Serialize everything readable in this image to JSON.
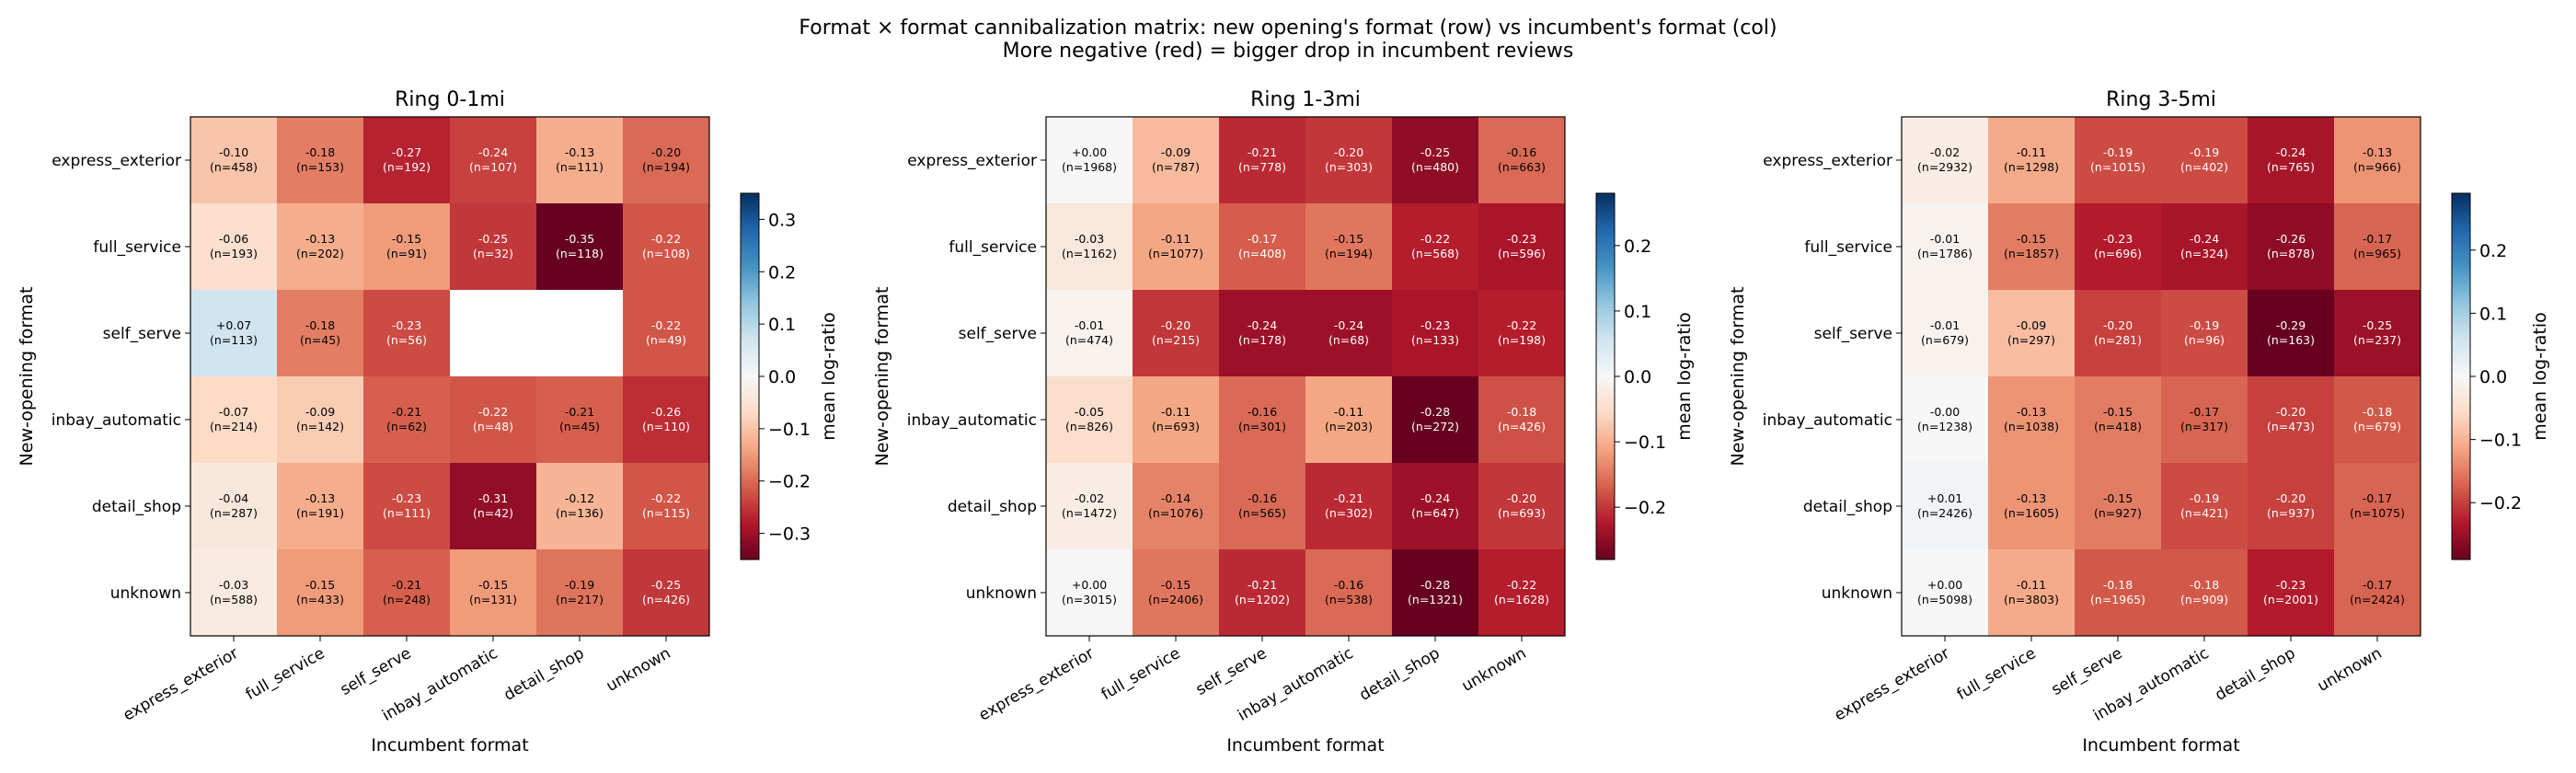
{
  "figure": {
    "title_line1": "Format × format cannibalization matrix: new opening's format (row) vs incumbent's format (col)",
    "title_line2": "More negative (red) = bigger drop in incumbent reviews"
  },
  "colors": {
    "colormap": "RdBu",
    "stops": [
      "#67001f",
      "#b2182b",
      "#d6604d",
      "#f4a582",
      "#fddbc7",
      "#f7f7f7",
      "#d1e5f0",
      "#92c5de",
      "#4393c3",
      "#2166ac",
      "#053061"
    ],
    "missing_cell": "#ffffff"
  },
  "chart_data": [
    {
      "type": "heatmap",
      "title": "Ring 0-1mi",
      "xlabel": "Incumbent format",
      "ylabel": "New-opening format",
      "colorbar_label": "mean log-ratio",
      "columns": [
        "express_exterior",
        "full_service",
        "self_serve",
        "inbay_automatic",
        "detail_shop",
        "unknown"
      ],
      "rows": [
        "express_exterior",
        "full_service",
        "self_serve",
        "inbay_automatic",
        "detail_shop",
        "unknown"
      ],
      "values": [
        [
          -0.1,
          -0.18,
          -0.27,
          -0.24,
          -0.13,
          -0.2
        ],
        [
          -0.06,
          -0.13,
          -0.15,
          -0.25,
          -0.35,
          -0.22
        ],
        [
          0.07,
          -0.18,
          -0.23,
          null,
          null,
          -0.22
        ],
        [
          -0.07,
          -0.09,
          -0.21,
          -0.22,
          -0.21,
          -0.26
        ],
        [
          -0.04,
          -0.13,
          -0.23,
          -0.31,
          -0.12,
          -0.22
        ],
        [
          -0.03,
          -0.15,
          -0.21,
          -0.15,
          -0.19,
          -0.25
        ]
      ],
      "cell_labels": [
        [
          "-0.10",
          "-0.18",
          "-0.27",
          "-0.24",
          "-0.13",
          "-0.20"
        ],
        [
          "-0.06",
          "-0.13",
          "-0.15",
          "-0.25",
          "-0.35",
          "-0.22"
        ],
        [
          "+0.07",
          "-0.18",
          "-0.23",
          null,
          null,
          "-0.22"
        ],
        [
          "-0.07",
          "-0.09",
          "-0.21",
          "-0.22",
          "-0.21",
          "-0.26"
        ],
        [
          "-0.04",
          "-0.13",
          "-0.23",
          "-0.31",
          "-0.12",
          "-0.22"
        ],
        [
          "-0.03",
          "-0.15",
          "-0.21",
          "-0.15",
          "-0.19",
          "-0.25"
        ]
      ],
      "counts": [
        [
          "(n=458)",
          "(n=153)",
          "(n=192)",
          "(n=107)",
          "(n=111)",
          "(n=194)"
        ],
        [
          "(n=193)",
          "(n=202)",
          "(n=91)",
          "(n=32)",
          "(n=118)",
          "(n=108)"
        ],
        [
          "(n=113)",
          "(n=45)",
          "(n=56)",
          null,
          null,
          "(n=49)"
        ],
        [
          "(n=214)",
          "(n=142)",
          "(n=62)",
          "(n=48)",
          "(n=45)",
          "(n=110)"
        ],
        [
          "(n=287)",
          "(n=191)",
          "(n=111)",
          "(n=42)",
          "(n=136)",
          "(n=115)"
        ],
        [
          "(n=588)",
          "(n=433)",
          "(n=248)",
          "(n=131)",
          "(n=217)",
          "(n=426)"
        ]
      ],
      "vlim": [
        -0.35,
        0.35
      ],
      "colorbar_ticks": [
        0.3,
        0.2,
        0.1,
        0.0,
        -0.1,
        -0.2,
        -0.3
      ],
      "colorbar_tick_labels": [
        "0.3",
        "0.2",
        "0.1",
        "0.0",
        "−0.1",
        "−0.2",
        "−0.3"
      ]
    },
    {
      "type": "heatmap",
      "title": "Ring 1-3mi",
      "xlabel": "Incumbent format",
      "ylabel": "New-opening format",
      "colorbar_label": "mean log-ratio",
      "columns": [
        "express_exterior",
        "full_service",
        "self_serve",
        "inbay_automatic",
        "detail_shop",
        "unknown"
      ],
      "rows": [
        "express_exterior",
        "full_service",
        "self_serve",
        "inbay_automatic",
        "detail_shop",
        "unknown"
      ],
      "values": [
        [
          0.0,
          -0.09,
          -0.21,
          -0.2,
          -0.25,
          -0.16
        ],
        [
          -0.03,
          -0.11,
          -0.17,
          -0.15,
          -0.22,
          -0.23
        ],
        [
          -0.01,
          -0.2,
          -0.24,
          -0.24,
          -0.23,
          -0.22
        ],
        [
          -0.05,
          -0.11,
          -0.16,
          -0.11,
          -0.28,
          -0.18
        ],
        [
          -0.02,
          -0.14,
          -0.16,
          -0.21,
          -0.24,
          -0.2
        ],
        [
          0.0,
          -0.15,
          -0.21,
          -0.16,
          -0.28,
          -0.22
        ]
      ],
      "cell_labels": [
        [
          "+0.00",
          "-0.09",
          "-0.21",
          "-0.20",
          "-0.25",
          "-0.16"
        ],
        [
          "-0.03",
          "-0.11",
          "-0.17",
          "-0.15",
          "-0.22",
          "-0.23"
        ],
        [
          "-0.01",
          "-0.20",
          "-0.24",
          "-0.24",
          "-0.23",
          "-0.22"
        ],
        [
          "-0.05",
          "-0.11",
          "-0.16",
          "-0.11",
          "-0.28",
          "-0.18"
        ],
        [
          "-0.02",
          "-0.14",
          "-0.16",
          "-0.21",
          "-0.24",
          "-0.20"
        ],
        [
          "+0.00",
          "-0.15",
          "-0.21",
          "-0.16",
          "-0.28",
          "-0.22"
        ]
      ],
      "counts": [
        [
          "(n=1968)",
          "(n=787)",
          "(n=778)",
          "(n=303)",
          "(n=480)",
          "(n=663)"
        ],
        [
          "(n=1162)",
          "(n=1077)",
          "(n=408)",
          "(n=194)",
          "(n=568)",
          "(n=596)"
        ],
        [
          "(n=474)",
          "(n=215)",
          "(n=178)",
          "(n=68)",
          "(n=133)",
          "(n=198)"
        ],
        [
          "(n=826)",
          "(n=693)",
          "(n=301)",
          "(n=203)",
          "(n=272)",
          "(n=426)"
        ],
        [
          "(n=1472)",
          "(n=1076)",
          "(n=565)",
          "(n=302)",
          "(n=647)",
          "(n=693)"
        ],
        [
          "(n=3015)",
          "(n=2406)",
          "(n=1202)",
          "(n=538)",
          "(n=1321)",
          "(n=1628)"
        ]
      ],
      "vlim": [
        -0.28,
        0.28
      ],
      "colorbar_ticks": [
        0.2,
        0.1,
        0.0,
        -0.1,
        -0.2
      ],
      "colorbar_tick_labels": [
        "0.2",
        "0.1",
        "0.0",
        "−0.1",
        "−0.2"
      ]
    },
    {
      "type": "heatmap",
      "title": "Ring 3-5mi",
      "xlabel": "Incumbent format",
      "ylabel": "New-opening format",
      "colorbar_label": "mean log-ratio",
      "columns": [
        "express_exterior",
        "full_service",
        "self_serve",
        "inbay_automatic",
        "detail_shop",
        "unknown"
      ],
      "rows": [
        "express_exterior",
        "full_service",
        "self_serve",
        "inbay_automatic",
        "detail_shop",
        "unknown"
      ],
      "values": [
        [
          -0.02,
          -0.11,
          -0.19,
          -0.19,
          -0.24,
          -0.13
        ],
        [
          -0.01,
          -0.15,
          -0.23,
          -0.24,
          -0.26,
          -0.17
        ],
        [
          -0.01,
          -0.09,
          -0.2,
          -0.19,
          -0.29,
          -0.25
        ],
        [
          0.0,
          -0.13,
          -0.15,
          -0.17,
          -0.2,
          -0.18
        ],
        [
          0.01,
          -0.13,
          -0.15,
          -0.19,
          -0.2,
          -0.17
        ],
        [
          0.0,
          -0.11,
          -0.18,
          -0.18,
          -0.23,
          -0.17
        ]
      ],
      "cell_labels": [
        [
          "-0.02",
          "-0.11",
          "-0.19",
          "-0.19",
          "-0.24",
          "-0.13"
        ],
        [
          "-0.01",
          "-0.15",
          "-0.23",
          "-0.24",
          "-0.26",
          "-0.17"
        ],
        [
          "-0.01",
          "-0.09",
          "-0.20",
          "-0.19",
          "-0.29",
          "-0.25"
        ],
        [
          "-0.00",
          "-0.13",
          "-0.15",
          "-0.17",
          "-0.20",
          "-0.18"
        ],
        [
          "+0.01",
          "-0.13",
          "-0.15",
          "-0.19",
          "-0.20",
          "-0.17"
        ],
        [
          "+0.00",
          "-0.11",
          "-0.18",
          "-0.18",
          "-0.23",
          "-0.17"
        ]
      ],
      "counts": [
        [
          "(n=2932)",
          "(n=1298)",
          "(n=1015)",
          "(n=402)",
          "(n=765)",
          "(n=966)"
        ],
        [
          "(n=1786)",
          "(n=1857)",
          "(n=696)",
          "(n=324)",
          "(n=878)",
          "(n=965)"
        ],
        [
          "(n=679)",
          "(n=297)",
          "(n=281)",
          "(n=96)",
          "(n=163)",
          "(n=237)"
        ],
        [
          "(n=1238)",
          "(n=1038)",
          "(n=418)",
          "(n=317)",
          "(n=473)",
          "(n=679)"
        ],
        [
          "(n=2426)",
          "(n=1605)",
          "(n=927)",
          "(n=421)",
          "(n=937)",
          "(n=1075)"
        ],
        [
          "(n=5098)",
          "(n=3803)",
          "(n=1965)",
          "(n=909)",
          "(n=2001)",
          "(n=2424)"
        ]
      ],
      "vlim": [
        -0.29,
        0.29
      ],
      "colorbar_ticks": [
        0.2,
        0.1,
        0.0,
        -0.1,
        -0.2
      ],
      "colorbar_tick_labels": [
        "0.2",
        "0.1",
        "0.0",
        "−0.1",
        "−0.2"
      ]
    }
  ]
}
